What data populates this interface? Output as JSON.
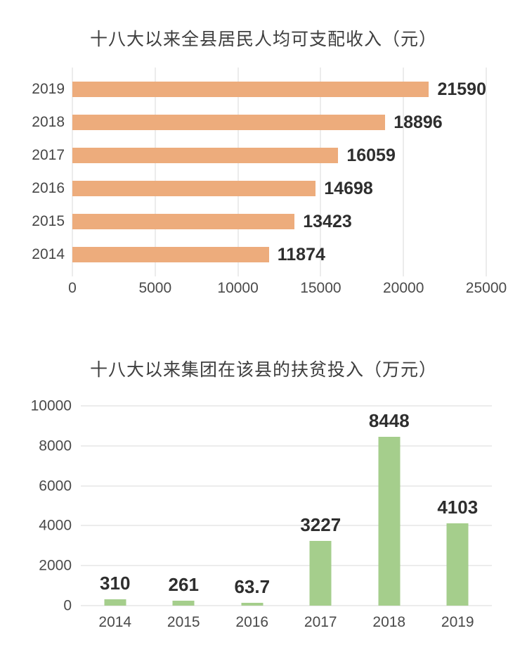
{
  "chart_data": [
    {
      "type": "bar",
      "orientation": "horizontal",
      "title": "十八大以来全县居民人均可支配收入（元）",
      "unit": "元",
      "categories": [
        "2019",
        "2018",
        "2017",
        "2016",
        "2015",
        "2014"
      ],
      "values": [
        21590,
        18896,
        16059,
        14698,
        13423,
        11874
      ],
      "value_labels": [
        "21590",
        "18896",
        "16059",
        "14698",
        "13423",
        "11874"
      ],
      "x_ticks": [
        "0",
        "5000",
        "10000",
        "15000",
        "20000",
        "25000"
      ],
      "xlim": [
        0,
        25000
      ],
      "grid": true,
      "legend": "none",
      "bar_color": "#edac7c",
      "gridline_color": "#d8d8d8"
    },
    {
      "type": "bar",
      "orientation": "vertical",
      "title": "十八大以来集团在该县的扶贫投入（万元）",
      "unit": "万元",
      "categories": [
        "2014",
        "2015",
        "2016",
        "2017",
        "2018",
        "2019"
      ],
      "values": [
        310,
        261,
        63.7,
        3227,
        8448,
        4103
      ],
      "value_labels": [
        "310",
        "261",
        "63.7",
        "3227",
        "8448",
        "4103"
      ],
      "y_ticks": [
        "10000",
        "8000",
        "6000",
        "4000",
        "2000",
        "0"
      ],
      "ylim": [
        0,
        10000
      ],
      "grid": true,
      "legend": "none",
      "bar_color": "#a5ce8c",
      "gridline_color": "#d8d8d8"
    }
  ]
}
